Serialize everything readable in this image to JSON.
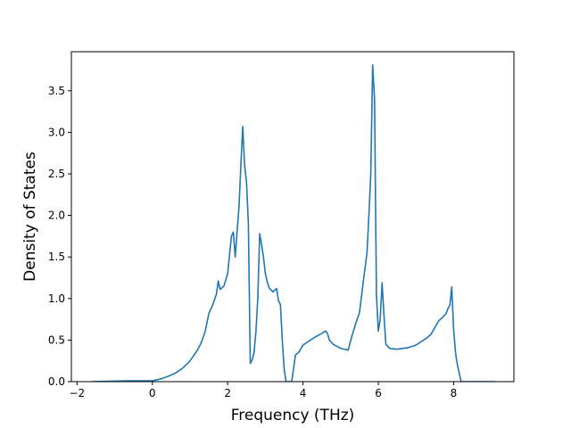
{
  "chart_data": {
    "type": "line",
    "title": "",
    "xlabel": "Frequency (THz)",
    "ylabel": "Density of States",
    "xlim": [
      -2.15,
      9.6
    ],
    "ylim": [
      0.0,
      3.97
    ],
    "grid": false,
    "legend": "none",
    "xticks": [
      -2,
      0,
      2,
      4,
      6,
      8
    ],
    "xtick_labels": [
      "−2",
      "0",
      "2",
      "4",
      "6",
      "8"
    ],
    "yticks": [
      0.0,
      0.5,
      1.0,
      1.5,
      2.0,
      2.5,
      3.0,
      3.5
    ],
    "ytick_labels": [
      "0.0",
      "0.5",
      "1.0",
      "1.5",
      "2.0",
      "2.5",
      "3.0",
      "3.5"
    ],
    "line_color": "#1f77b4",
    "series": [
      {
        "x": [
          -1.6,
          -0.6,
          -0.2,
          0.0,
          0.2,
          0.4,
          0.6,
          0.8,
          1.0,
          1.2,
          1.3,
          1.4,
          1.5,
          1.6,
          1.7,
          1.75,
          1.8,
          1.9,
          2.0,
          2.1,
          2.15,
          2.2,
          2.25,
          2.3,
          2.35,
          2.4,
          2.45,
          2.5,
          2.55,
          2.6,
          2.65,
          2.7,
          2.75,
          2.8,
          2.85,
          2.9,
          2.95,
          3.0,
          3.05,
          3.1,
          3.2,
          3.3,
          3.35,
          3.4,
          3.45,
          3.5,
          3.55,
          3.6,
          3.7,
          3.8,
          3.9,
          4.0,
          4.1,
          4.3,
          4.5,
          4.6,
          4.65,
          4.7,
          4.8,
          5.0,
          5.1,
          5.2,
          5.3,
          5.4,
          5.5,
          5.6,
          5.7,
          5.75,
          5.8,
          5.85,
          5.9,
          5.95,
          6.0,
          6.05,
          6.1,
          6.15,
          6.2,
          6.3,
          6.5,
          6.8,
          7.0,
          7.2,
          7.3,
          7.4,
          7.5,
          7.6,
          7.7,
          7.8,
          7.85,
          7.9,
          7.95,
          8.0,
          8.05,
          8.1,
          8.2,
          8.4,
          9.1
        ],
        "y": [
          0.0,
          0.01,
          0.01,
          0.01,
          0.03,
          0.06,
          0.1,
          0.16,
          0.25,
          0.38,
          0.47,
          0.6,
          0.82,
          0.92,
          1.05,
          1.21,
          1.11,
          1.15,
          1.3,
          1.75,
          1.8,
          1.5,
          1.8,
          2.1,
          2.6,
          3.07,
          2.6,
          2.4,
          1.9,
          0.22,
          0.26,
          0.35,
          0.6,
          1.0,
          1.78,
          1.65,
          1.5,
          1.3,
          1.2,
          1.13,
          1.08,
          1.12,
          0.97,
          0.93,
          0.5,
          0.15,
          0.0,
          0.0,
          0.0,
          0.32,
          0.36,
          0.44,
          0.47,
          0.53,
          0.58,
          0.61,
          0.58,
          0.5,
          0.45,
          0.4,
          0.39,
          0.38,
          0.55,
          0.7,
          0.83,
          1.2,
          1.55,
          2.0,
          2.5,
          3.81,
          3.4,
          1.05,
          0.61,
          0.75,
          1.19,
          0.8,
          0.45,
          0.4,
          0.39,
          0.41,
          0.44,
          0.5,
          0.53,
          0.57,
          0.65,
          0.73,
          0.77,
          0.82,
          0.88,
          0.92,
          1.14,
          0.62,
          0.35,
          0.2,
          0.0,
          0.0,
          0.0
        ]
      }
    ]
  }
}
